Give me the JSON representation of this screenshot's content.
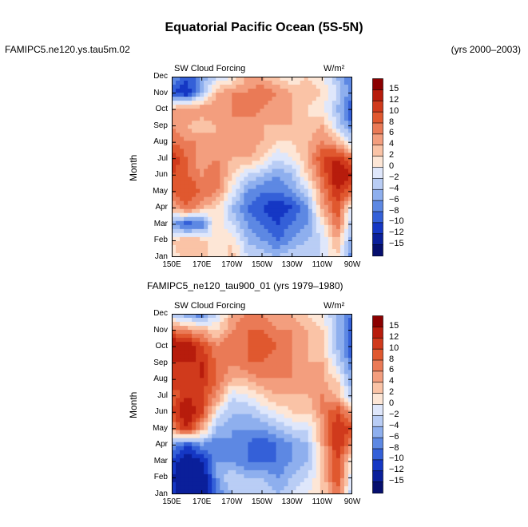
{
  "figure": {
    "title": "Equatorial Pacific Ocean (5S-5N)",
    "run_label": "FAMIPC5.ne120.ys.tau5m.02",
    "years_label": "(yrs 2000–2003)",
    "panel2_header": "FAMIPC5_ne120_tau900_01 (yrs 1979–1980)"
  },
  "colorbar": {
    "levels": [
      "15",
      "12",
      "10",
      "8",
      "6",
      "4",
      "2",
      "0",
      "−2",
      "−4",
      "−6",
      "−8",
      "−10",
      "−12",
      "−15"
    ],
    "colors": [
      "#8b0000",
      "#b71c0c",
      "#d03a1c",
      "#e0582f",
      "#ea7a56",
      "#f39e7e",
      "#fac3a6",
      "#fde6d6",
      "#dfe7fb",
      "#b9cdf5",
      "#8eafee",
      "#5d88e3",
      "#3460d8",
      "#1537c4",
      "#0a1f9a",
      "#060f6e"
    ]
  },
  "chart_data": [
    {
      "type": "heatmap",
      "title": "SW Cloud Forcing",
      "units": "W/m²",
      "ylabel": "Month",
      "xlabel": "",
      "x_ticks": [
        "150E",
        "170E",
        "170W",
        "150W",
        "130W",
        "110W",
        "90W"
      ],
      "y_ticks": [
        "Jan",
        "Feb",
        "Mar",
        "Apr",
        "May",
        "Jun",
        "Jul",
        "Aug",
        "Sep",
        "Oct",
        "Nov",
        "Dec"
      ],
      "x_lon_range": [
        150,
        270
      ],
      "z_range": [
        -15,
        15
      ],
      "columns_lon": [
        150,
        160,
        170,
        180,
        190,
        200,
        210,
        220,
        230,
        240,
        250,
        260,
        270
      ],
      "z": [
        [
          0,
          4,
          3,
          0,
          3,
          -2,
          -2,
          -4,
          -2,
          -2,
          -2,
          2,
          -8
        ],
        [
          2,
          4,
          3,
          0,
          2,
          -4,
          -6,
          -8,
          -6,
          -4,
          -2,
          4,
          -6
        ],
        [
          -6,
          -10,
          -8,
          2,
          -2,
          -6,
          -8,
          -10,
          -8,
          -6,
          0,
          8,
          -4
        ],
        [
          4,
          8,
          4,
          2,
          -4,
          -8,
          -10,
          -12,
          -10,
          -6,
          4,
          10,
          -2
        ],
        [
          8,
          10,
          8,
          6,
          0,
          -6,
          -8,
          -8,
          -6,
          -2,
          6,
          12,
          8
        ],
        [
          10,
          8,
          6,
          8,
          2,
          -2,
          -4,
          -6,
          -4,
          2,
          8,
          15,
          12
        ],
        [
          12,
          8,
          4,
          6,
          4,
          4,
          2,
          -2,
          0,
          4,
          10,
          12,
          8
        ],
        [
          8,
          6,
          6,
          4,
          4,
          6,
          4,
          2,
          2,
          4,
          6,
          4,
          -2
        ],
        [
          6,
          4,
          2,
          4,
          6,
          4,
          4,
          4,
          4,
          2,
          4,
          -2,
          -8
        ],
        [
          4,
          6,
          6,
          6,
          6,
          8,
          6,
          4,
          4,
          2,
          0,
          -4,
          -10
        ],
        [
          -10,
          -12,
          -4,
          4,
          6,
          6,
          8,
          6,
          4,
          4,
          2,
          -2,
          -8
        ],
        [
          -6,
          -10,
          -6,
          -2,
          0,
          4,
          4,
          2,
          0,
          2,
          0,
          -4,
          -8
        ]
      ]
    },
    {
      "type": "heatmap",
      "title": "SW Cloud Forcing",
      "units": "W/m²",
      "ylabel": "Month",
      "xlabel": "",
      "x_ticks": [
        "150E",
        "170E",
        "170W",
        "150W",
        "130W",
        "110W",
        "90W"
      ],
      "y_ticks": [
        "Jan",
        "Feb",
        "Mar",
        "Apr",
        "May",
        "Jun",
        "Jul",
        "Aug",
        "Sep",
        "Oct",
        "Nov",
        "Dec"
      ],
      "x_lon_range": [
        150,
        270
      ],
      "z_range": [
        -15,
        15
      ],
      "columns_lon": [
        150,
        160,
        170,
        180,
        190,
        200,
        210,
        220,
        230,
        240,
        250,
        260,
        270
      ],
      "z": [
        [
          -10,
          -15,
          -15,
          -8,
          -4,
          -2,
          -2,
          -4,
          -2,
          0,
          2,
          8,
          -4
        ],
        [
          -12,
          -15,
          -15,
          -6,
          -2,
          -4,
          -4,
          -6,
          -4,
          -2,
          2,
          10,
          -2
        ],
        [
          -10,
          -15,
          -12,
          -6,
          -6,
          -8,
          -8,
          -8,
          -6,
          -4,
          2,
          10,
          0
        ],
        [
          -6,
          -10,
          -6,
          -8,
          -6,
          -8,
          -10,
          -8,
          -6,
          -4,
          4,
          12,
          6
        ],
        [
          6,
          12,
          4,
          -4,
          -6,
          -6,
          -6,
          -4,
          -2,
          -2,
          4,
          12,
          10
        ],
        [
          10,
          15,
          10,
          0,
          -4,
          -4,
          -2,
          0,
          2,
          2,
          6,
          10,
          4
        ],
        [
          8,
          12,
          10,
          6,
          -2,
          0,
          2,
          4,
          4,
          4,
          6,
          4,
          -4
        ],
        [
          12,
          10,
          12,
          8,
          4,
          4,
          6,
          6,
          6,
          4,
          4,
          2,
          -6
        ],
        [
          12,
          12,
          12,
          8,
          6,
          8,
          8,
          6,
          6,
          4,
          4,
          -2,
          -8
        ],
        [
          15,
          15,
          10,
          6,
          8,
          8,
          10,
          8,
          6,
          4,
          2,
          -4,
          -10
        ],
        [
          8,
          6,
          4,
          2,
          6,
          8,
          8,
          6,
          6,
          4,
          2,
          -4,
          -10
        ],
        [
          -4,
          -6,
          -8,
          -2,
          4,
          6,
          6,
          4,
          4,
          2,
          0,
          -4,
          -8
        ]
      ]
    }
  ]
}
